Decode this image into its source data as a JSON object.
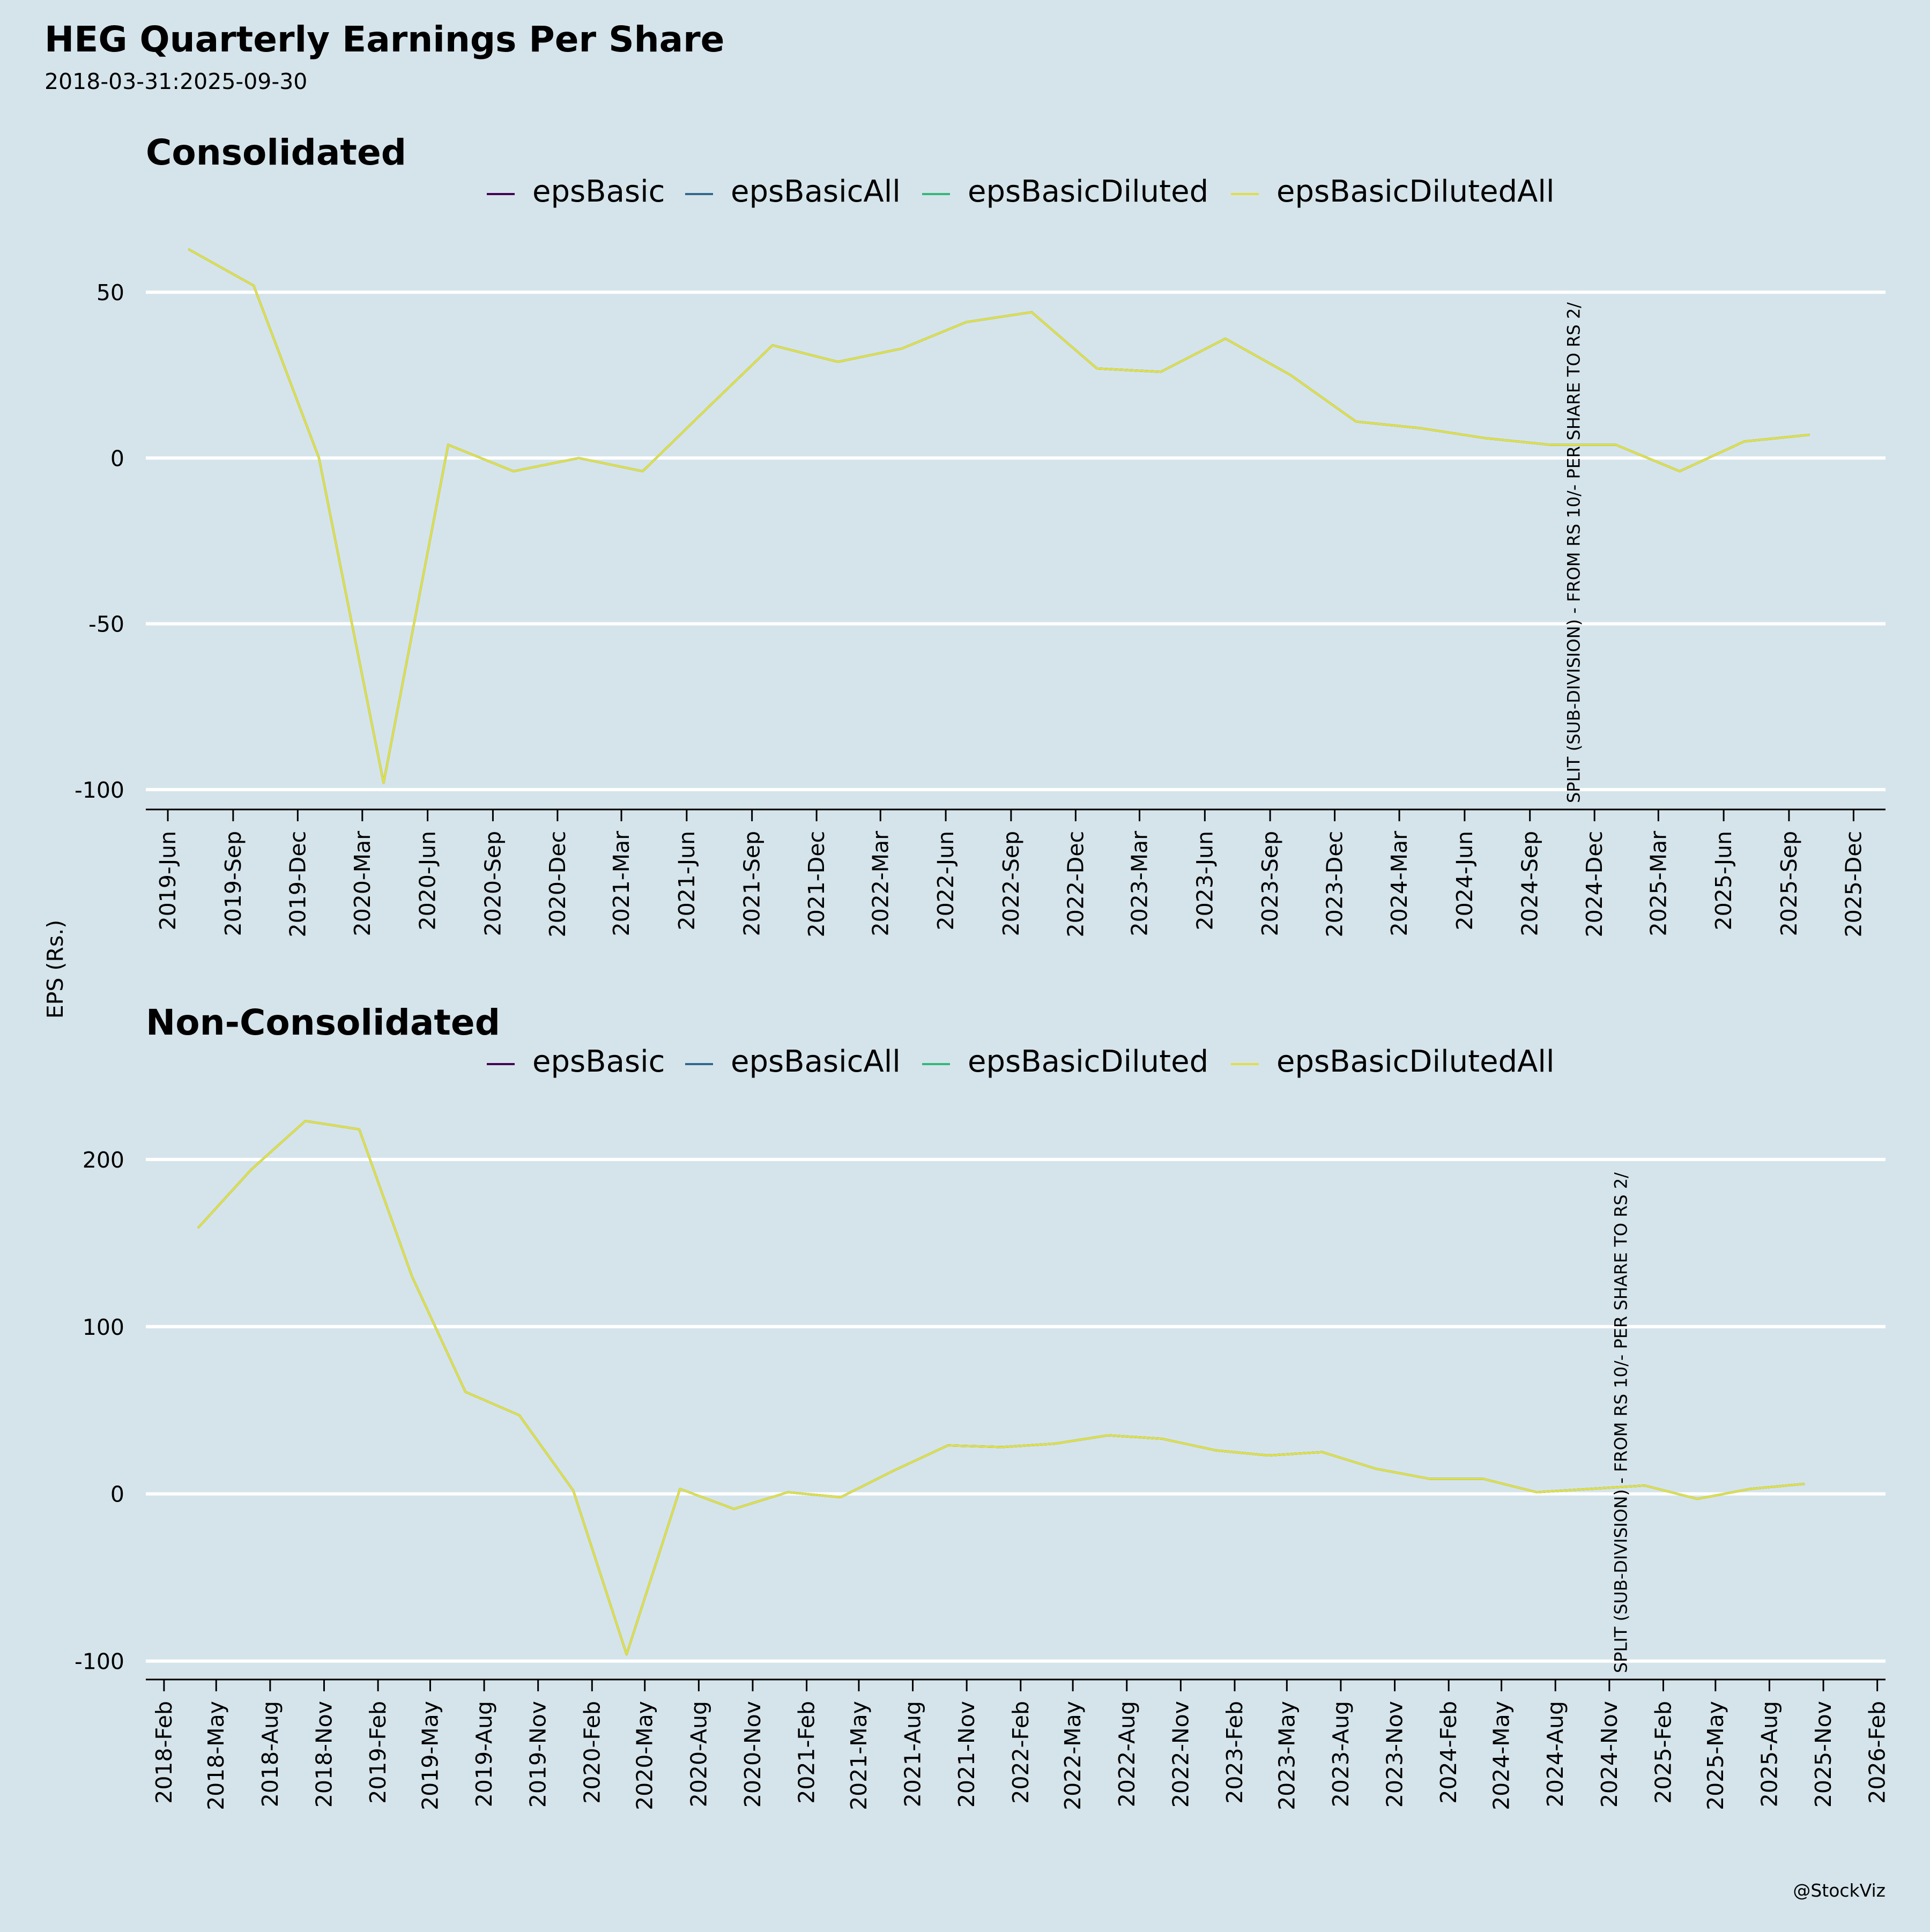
{
  "title": "HEG Quarterly Earnings Per Share",
  "subtitle": "2018-03-31:2025-09-30",
  "y_axis_label": "EPS (Rs.)",
  "credit": "@StockViz",
  "colors": {
    "background": "#d5e4eb",
    "epsBasic": "#440154",
    "epsBasicAll": "#31688e",
    "epsBasicDiluted": "#35b779",
    "epsBasicDilutedAll": "#e0de4a",
    "grid": "#ffffff",
    "axis": "#000000"
  },
  "chart_data": [
    {
      "type": "line",
      "title": "Consolidated",
      "xlabel": "",
      "ylabel": "EPS (Rs.)",
      "legend": [
        "epsBasic",
        "epsBasicAll",
        "epsBasicDiluted",
        "epsBasicDilutedAll"
      ],
      "legend_position": "top",
      "grid": true,
      "ylim": [
        -106,
        67
      ],
      "xlim": [
        "2019-05-01",
        "2026-01-15"
      ],
      "yticks": [
        -100,
        -50,
        0,
        50
      ],
      "xticks": [
        "2019-Jun",
        "2019-Sep",
        "2019-Dec",
        "2020-Mar",
        "2020-Jun",
        "2020-Sep",
        "2020-Dec",
        "2021-Mar",
        "2021-Jun",
        "2021-Sep",
        "2021-Dec",
        "2022-Mar",
        "2022-Jun",
        "2022-Sep",
        "2022-Dec",
        "2023-Mar",
        "2023-Jun",
        "2023-Sep",
        "2023-Dec",
        "2024-Mar",
        "2024-Jun",
        "2024-Sep",
        "2024-Dec",
        "2025-Mar",
        "2025-Jun",
        "2025-Sep",
        "2025-Dec"
      ],
      "xtick_dates": [
        "2019-06-01",
        "2019-09-01",
        "2019-12-01",
        "2020-03-01",
        "2020-06-01",
        "2020-09-01",
        "2020-12-01",
        "2021-03-01",
        "2021-06-01",
        "2021-09-01",
        "2021-12-01",
        "2022-03-01",
        "2022-06-01",
        "2022-09-01",
        "2022-12-01",
        "2023-03-01",
        "2023-06-01",
        "2023-09-01",
        "2023-12-01",
        "2024-03-01",
        "2024-06-01",
        "2024-09-01",
        "2024-12-01",
        "2025-03-01",
        "2025-06-01",
        "2025-09-01",
        "2025-12-01"
      ],
      "x": [
        "2019-06-30",
        "2019-09-30",
        "2019-12-31",
        "2020-03-31",
        "2020-06-30",
        "2020-09-30",
        "2020-12-31",
        "2021-03-31",
        "2021-06-30",
        "2021-09-30",
        "2021-12-31",
        "2022-03-31",
        "2022-06-30",
        "2022-09-30",
        "2022-12-31",
        "2023-03-31",
        "2023-06-30",
        "2023-09-30",
        "2023-12-31",
        "2024-03-31",
        "2024-06-30",
        "2024-09-30",
        "2024-12-31",
        "2025-03-31",
        "2025-06-30",
        "2025-09-30"
      ],
      "series": [
        {
          "name": "epsBasic",
          "values": [
            63,
            52,
            0,
            -98,
            4,
            -4,
            0,
            -4,
            15,
            34,
            29,
            33,
            41,
            44,
            27,
            26,
            36,
            25,
            11,
            9,
            6,
            4,
            4,
            -4,
            5,
            7
          ]
        },
        {
          "name": "epsBasicAll",
          "values": [
            63,
            52,
            0,
            -98,
            4,
            -4,
            0,
            -4,
            15,
            34,
            29,
            33,
            41,
            44,
            27,
            26,
            36,
            25,
            11,
            9,
            6,
            4,
            4,
            -4,
            5,
            7
          ]
        },
        {
          "name": "epsBasicDiluted",
          "values": [
            63,
            52,
            0,
            -98,
            4,
            -4,
            0,
            -4,
            15,
            34,
            29,
            33,
            41,
            44,
            27,
            26,
            36,
            25,
            11,
            9,
            6,
            4,
            4,
            -4,
            5,
            7
          ]
        },
        {
          "name": "epsBasicDilutedAll",
          "values": [
            63,
            52,
            0,
            -98,
            4,
            -4,
            0,
            -4,
            15,
            34,
            29,
            33,
            41,
            44,
            27,
            26,
            36,
            25,
            11,
            9,
            6,
            4,
            4,
            -4,
            5,
            7
          ]
        }
      ],
      "annotations": [
        {
          "date": "2024-11-01",
          "text": "SPLIT (SUB-DIVISION) - FROM RS 10/- PER SHARE TO RS 2/"
        }
      ]
    },
    {
      "type": "line",
      "title": "Non-Consolidated",
      "xlabel": "",
      "ylabel": "EPS (Rs.)",
      "legend": [
        "epsBasic",
        "epsBasicAll",
        "epsBasicDiluted",
        "epsBasicDilutedAll"
      ],
      "legend_position": "top",
      "grid": true,
      "ylim": [
        -111,
        232
      ],
      "xlim": [
        "2018-01-01",
        "2026-02-15"
      ],
      "yticks": [
        -100,
        0,
        100,
        200
      ],
      "xticks": [
        "2018-Feb",
        "2018-May",
        "2018-Aug",
        "2018-Nov",
        "2019-Feb",
        "2019-May",
        "2019-Aug",
        "2019-Nov",
        "2020-Feb",
        "2020-May",
        "2020-Aug",
        "2020-Nov",
        "2021-Feb",
        "2021-May",
        "2021-Aug",
        "2021-Nov",
        "2022-Feb",
        "2022-May",
        "2022-Aug",
        "2022-Nov",
        "2023-Feb",
        "2023-May",
        "2023-Aug",
        "2023-Nov",
        "2024-Feb",
        "2024-May",
        "2024-Aug",
        "2024-Nov",
        "2025-Feb",
        "2025-May",
        "2025-Aug",
        "2025-Nov",
        "2026-Feb"
      ],
      "xtick_dates": [
        "2018-02-01",
        "2018-05-01",
        "2018-08-01",
        "2018-11-01",
        "2019-02-01",
        "2019-05-01",
        "2019-08-01",
        "2019-11-01",
        "2020-02-01",
        "2020-05-01",
        "2020-08-01",
        "2020-11-01",
        "2021-02-01",
        "2021-05-01",
        "2021-08-01",
        "2021-11-01",
        "2022-02-01",
        "2022-05-01",
        "2022-08-01",
        "2022-11-01",
        "2023-02-01",
        "2023-05-01",
        "2023-08-01",
        "2023-11-01",
        "2024-02-01",
        "2024-05-01",
        "2024-08-01",
        "2024-11-01",
        "2025-02-01",
        "2025-05-01",
        "2025-08-01",
        "2025-11-01",
        "2026-02-01"
      ],
      "x": [
        "2018-03-31",
        "2018-06-30",
        "2018-09-30",
        "2018-12-31",
        "2019-03-31",
        "2019-06-30",
        "2019-09-30",
        "2019-12-31",
        "2020-03-31",
        "2020-06-30",
        "2020-09-30",
        "2020-12-31",
        "2021-03-31",
        "2021-06-30",
        "2021-09-30",
        "2021-12-31",
        "2022-03-31",
        "2022-06-30",
        "2022-09-30",
        "2022-12-31",
        "2023-03-31",
        "2023-06-30",
        "2023-09-30",
        "2023-12-31",
        "2024-03-31",
        "2024-06-30",
        "2024-09-30",
        "2024-12-31",
        "2025-03-31",
        "2025-06-30",
        "2025-09-30"
      ],
      "series": [
        {
          "name": "epsBasic",
          "values": [
            159,
            194,
            223,
            218,
            130,
            61,
            47,
            2,
            -96,
            3,
            -9,
            1,
            -2,
            14,
            29,
            28,
            30,
            35,
            33,
            26,
            23,
            25,
            15,
            9,
            9,
            1,
            3,
            5,
            -3,
            3,
            6
          ]
        },
        {
          "name": "epsBasicAll",
          "values": [
            159,
            194,
            223,
            218,
            130,
            61,
            47,
            2,
            -96,
            3,
            -9,
            1,
            -2,
            14,
            29,
            28,
            30,
            35,
            33,
            26,
            23,
            25,
            15,
            9,
            9,
            1,
            3,
            5,
            -3,
            3,
            6
          ]
        },
        {
          "name": "epsBasicDiluted",
          "values": [
            159,
            194,
            223,
            218,
            130,
            61,
            47,
            2,
            -96,
            3,
            -9,
            1,
            -2,
            14,
            29,
            28,
            30,
            35,
            33,
            26,
            23,
            25,
            15,
            9,
            9,
            1,
            3,
            5,
            -3,
            3,
            6
          ]
        },
        {
          "name": "epsBasicDilutedAll",
          "values": [
            159,
            194,
            223,
            218,
            130,
            61,
            47,
            2,
            -96,
            3,
            -9,
            1,
            -2,
            14,
            29,
            28,
            30,
            35,
            33,
            26,
            23,
            25,
            15,
            9,
            9,
            1,
            3,
            5,
            -3,
            3,
            6
          ]
        }
      ],
      "annotations": [
        {
          "date": "2024-11-20",
          "text": "SPLIT (SUB-DIVISION) - FROM RS 10/- PER SHARE TO RS 2/"
        }
      ]
    }
  ]
}
